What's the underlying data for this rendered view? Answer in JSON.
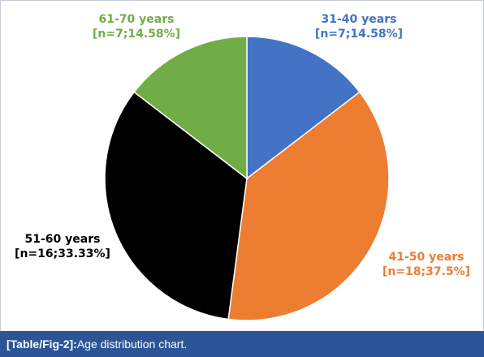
{
  "chart_data": {
    "type": "pie",
    "categories": [
      "31-40 years",
      "41-50 years",
      "51-60 years",
      "61-70 years"
    ],
    "counts": [
      7,
      18,
      16,
      7
    ],
    "values": [
      14.58,
      37.5,
      33.33,
      14.58
    ],
    "label_lines": [
      [
        "31-40 years",
        "[n=7;14.58%]"
      ],
      [
        "41-50 years",
        "[n=18;37.5%]"
      ],
      [
        "51-60 years",
        "[n=16;33.33%]"
      ],
      [
        "61-70 years",
        "[n=7;14.58%]"
      ]
    ],
    "colors": [
      "#4472c4",
      "#ed7d31",
      "#000000",
      "#70ad47"
    ],
    "label_colors": [
      "#4472c4",
      "#ed7d31",
      "#000000",
      "#70ad47"
    ],
    "start": "12 o'clock",
    "direction": "clockwise"
  },
  "caption": {
    "ref": "[Table/Fig-2]:",
    "text": " Age distribution chart."
  }
}
